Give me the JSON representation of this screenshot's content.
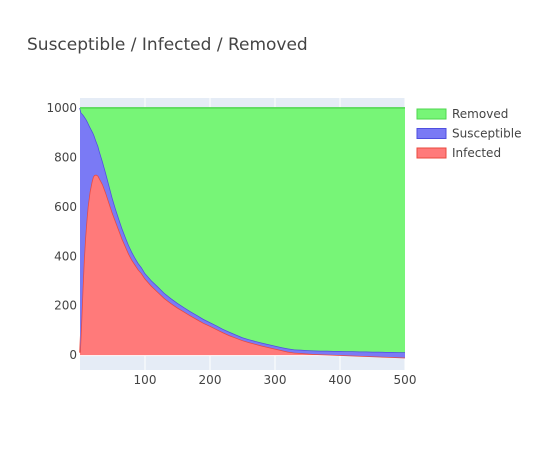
{
  "chart_data": {
    "type": "area",
    "title": "Susceptible / Infected / Removed",
    "xlabel": "",
    "ylabel": "",
    "xlim": [
      0,
      500
    ],
    "ylim": [
      -60,
      1040
    ],
    "x_ticks": [
      100,
      200,
      300,
      400,
      500
    ],
    "y_ticks": [
      0,
      200,
      400,
      600,
      800,
      1000
    ],
    "grid": true,
    "stacked": true,
    "legend_position": "top-right",
    "x": [
      0,
      2,
      4,
      6,
      8,
      10,
      12,
      15,
      18,
      20,
      22,
      25,
      28,
      30,
      35,
      40,
      45,
      50,
      55,
      60,
      65,
      70,
      75,
      80,
      85,
      90,
      95,
      100,
      110,
      120,
      130,
      140,
      150,
      160,
      170,
      180,
      190,
      200,
      210,
      220,
      230,
      240,
      250,
      260,
      270,
      280,
      290,
      300,
      310,
      320,
      330,
      340,
      350,
      360,
      370,
      380,
      390,
      400,
      410,
      420,
      430,
      440,
      450,
      460,
      470,
      480,
      490,
      500
    ],
    "series": [
      {
        "name": "Infected",
        "color": "#ff7a7a",
        "line_color": "#e8493f",
        "values": [
          10,
          130,
          260,
          380,
          470,
          540,
          600,
          660,
          700,
          720,
          728,
          730,
          725,
          715,
          690,
          655,
          615,
          575,
          540,
          505,
          470,
          440,
          410,
          385,
          365,
          345,
          330,
          310,
          280,
          255,
          230,
          210,
          192,
          176,
          160,
          145,
          130,
          118,
          105,
          92,
          80,
          70,
          60,
          52,
          45,
          38,
          32,
          26,
          20,
          14,
          10,
          8,
          6,
          4,
          3,
          2,
          1,
          0,
          -1,
          -2,
          -3,
          -4,
          -5,
          -6,
          -7,
          -8,
          -9,
          -10
        ]
      },
      {
        "name": "Susceptible",
        "color": "#7a7af5",
        "line_color": "#4f4fe0",
        "values": [
          990,
          850,
          715,
          588,
          490,
          412,
          342,
          265,
          210,
          180,
          160,
          135,
          120,
          110,
          92,
          80,
          70,
          60,
          51,
          46,
          42,
          38,
          35,
          32,
          28,
          26,
          24,
          22,
          22,
          22,
          21,
          20,
          19,
          18,
          17,
          17,
          16,
          15,
          15,
          14,
          14,
          13,
          12,
          12,
          12,
          12,
          12,
          12,
          12,
          13,
          13,
          14,
          14,
          15,
          15,
          16,
          16,
          17,
          17,
          18,
          18,
          19,
          19,
          20,
          20,
          21,
          21,
          22
        ]
      },
      {
        "name": "Removed",
        "color": "#77f577",
        "line_color": "#4fd64f",
        "values": [
          0,
          20,
          25,
          32,
          40,
          48,
          58,
          75,
          90,
          100,
          112,
          135,
          155,
          175,
          218,
          265,
          315,
          365,
          409,
          449,
          488,
          522,
          555,
          583,
          607,
          629,
          646,
          668,
          698,
          723,
          749,
          770,
          789,
          806,
          823,
          838,
          854,
          867,
          880,
          894,
          906,
          917,
          928,
          936,
          943,
          950,
          956,
          962,
          968,
          973,
          977,
          978,
          980,
          981,
          982,
          982,
          983,
          983,
          984,
          984,
          985,
          985,
          986,
          986,
          987,
          987,
          988,
          988
        ]
      }
    ],
    "legend_order": [
      "Removed",
      "Susceptible",
      "Infected"
    ]
  }
}
